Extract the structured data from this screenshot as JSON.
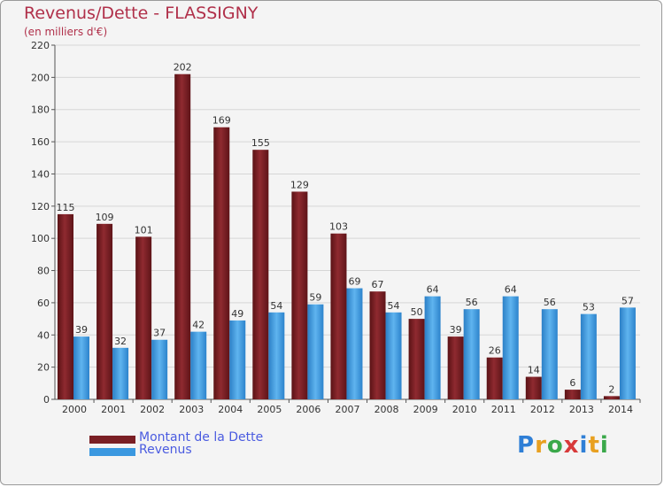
{
  "title": "Revenus/Dette - FLASSIGNY",
  "subtitle": "(en milliers d'€)",
  "logo": {
    "letters": [
      "P",
      "r",
      "o",
      "x",
      "i",
      "t",
      "i"
    ],
    "colors": [
      "#2f7fd6",
      "#e8a020",
      "#3aa84a",
      "#d83a3a",
      "#2f7fd6",
      "#e8a020",
      "#3aa84a"
    ]
  },
  "legend": [
    {
      "label": "Montant de la Dette",
      "color": "#7a1f24"
    },
    {
      "label": "Revenus",
      "color": "#3a98e0"
    }
  ],
  "chart_data": {
    "type": "bar",
    "categories": [
      "2000",
      "2001",
      "2002",
      "2003",
      "2004",
      "2005",
      "2006",
      "2007",
      "2008",
      "2009",
      "2010",
      "2011",
      "2012",
      "2013",
      "2014"
    ],
    "series": [
      {
        "name": "Montant de la Dette",
        "color": "#7a1f24",
        "values": [
          115,
          109,
          101,
          202,
          169,
          155,
          129,
          103,
          67,
          50,
          39,
          26,
          14,
          6,
          2
        ]
      },
      {
        "name": "Revenus",
        "color": "#3a98e0",
        "values": [
          39,
          32,
          37,
          42,
          49,
          54,
          59,
          69,
          54,
          64,
          56,
          64,
          56,
          53,
          57
        ]
      }
    ],
    "ylim": [
      0,
      220
    ],
    "yticks": [
      0,
      20,
      40,
      60,
      80,
      100,
      120,
      140,
      160,
      180,
      200,
      220
    ],
    "grid": true
  }
}
